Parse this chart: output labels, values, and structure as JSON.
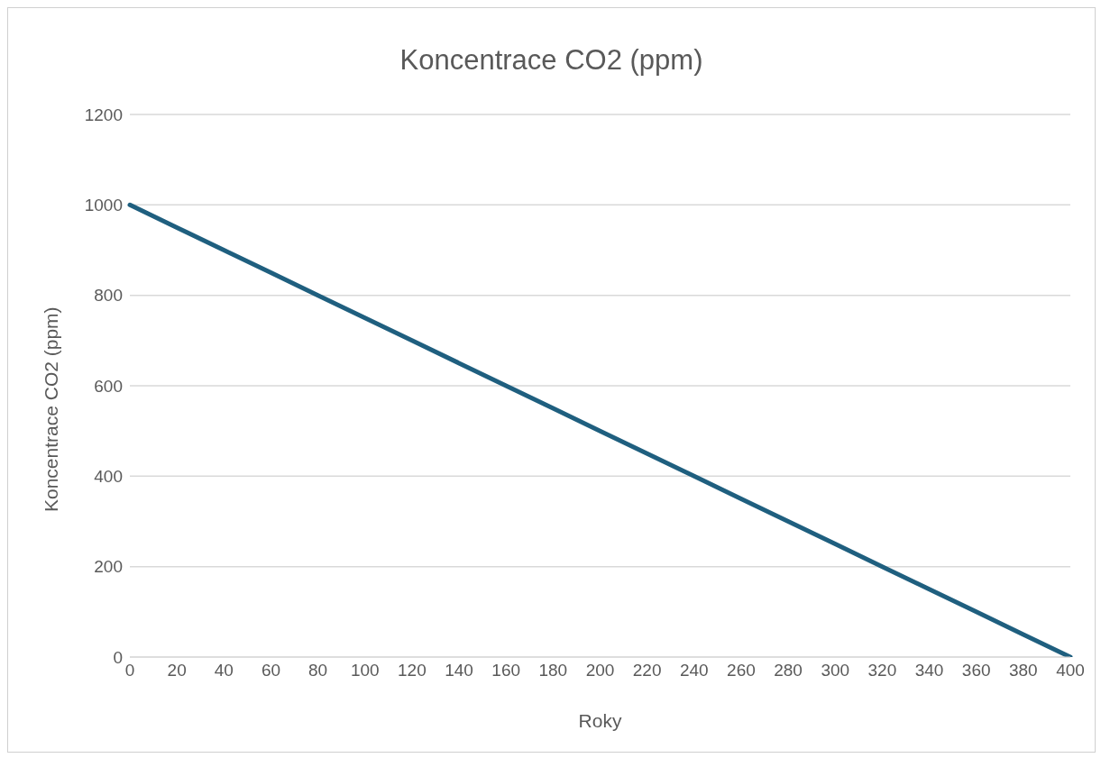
{
  "chart_data": {
    "type": "line",
    "title": "Koncentrace CO2 (ppm)",
    "xlabel": "Roky",
    "ylabel": "Koncentrace CO2 (ppm)",
    "categories": [
      "0",
      "20",
      "40",
      "60",
      "80",
      "100",
      "120",
      "140",
      "160",
      "180",
      "200",
      "220",
      "240",
      "260",
      "280",
      "300",
      "320",
      "340",
      "360",
      "380",
      "400"
    ],
    "series": [
      {
        "color": "#1f5f7f",
        "values": [
          1000,
          950,
          900,
          850,
          800,
          750,
          700,
          650,
          600,
          550,
          500,
          450,
          400,
          350,
          300,
          250,
          200,
          150,
          100,
          50,
          0
        ]
      }
    ],
    "ylim": [
      0,
      1200
    ],
    "yticks": [
      0,
      200,
      400,
      600,
      800,
      1000,
      1200
    ],
    "grid": "y",
    "legend": false,
    "marker": "none",
    "line_style": "solid"
  }
}
